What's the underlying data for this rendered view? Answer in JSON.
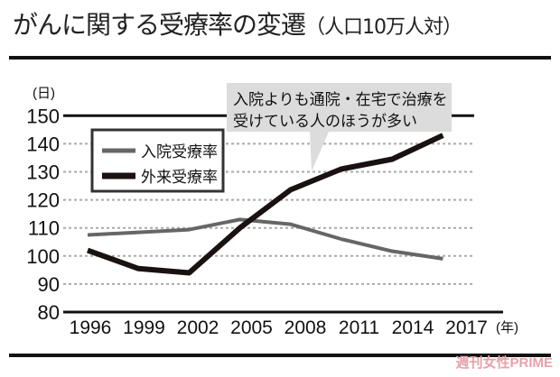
{
  "title": "がんに関する受療率の変遷",
  "subtitle": "（人口10万人対）",
  "watermark": "週刊女性PRIME",
  "chart_data": {
    "type": "line",
    "title": "がんに関する受療率の変遷（人口10万人対）",
    "ylabel": "(日)",
    "xlabel": "(年)",
    "x": [
      "1996",
      "1999",
      "2002",
      "2005",
      "2008",
      "2011",
      "2014",
      "2017"
    ],
    "yticks": [
      80,
      90,
      100,
      110,
      120,
      130,
      140,
      150
    ],
    "ylim": [
      80,
      150
    ],
    "grid": true,
    "legend_position": "top-left",
    "series": [
      {
        "name": "入院受療率",
        "color": "#666666",
        "values": [
          107.5,
          108.4,
          109.4,
          113,
          111.3,
          106,
          101.7,
          99
        ]
      },
      {
        "name": "外来受療率",
        "color": "#1a1111",
        "values": [
          102,
          95.5,
          94,
          110,
          123.6,
          131,
          134.5,
          143
        ]
      }
    ],
    "annotation": [
      "入院よりも通院・在宅で治療を",
      "受けている人のほうが多い"
    ]
  }
}
